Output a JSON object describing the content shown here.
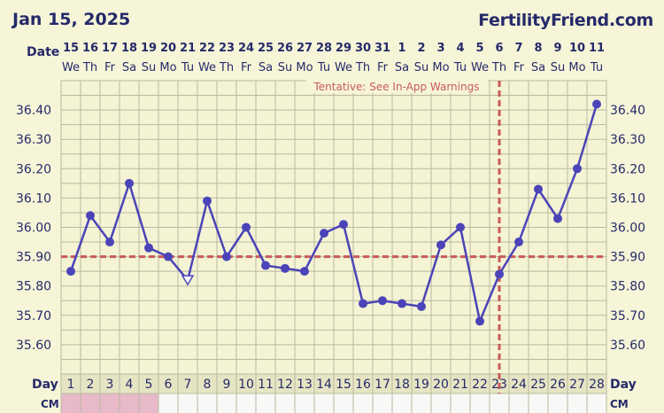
{
  "header": {
    "date": "Jan 15, 2025",
    "brand": "FertilityFriend.com"
  },
  "labels": {
    "date_row": "Date",
    "day_row": "Day",
    "cm_row": "CM",
    "warning": "Tentative: See In-App Warnings"
  },
  "colors": {
    "line": "#4b44b8",
    "coverline": "#c85a5a",
    "grid": "#b9b9a0",
    "cm_pink": "#e8b9c8"
  },
  "chart_data": {
    "type": "line",
    "x_day": [
      1,
      2,
      3,
      4,
      5,
      6,
      7,
      8,
      9,
      10,
      11,
      12,
      13,
      14,
      15,
      16,
      17,
      18,
      19,
      20,
      21,
      22,
      23,
      24,
      25,
      26,
      27,
      28
    ],
    "dates": [
      "15",
      "16",
      "17",
      "18",
      "19",
      "20",
      "21",
      "22",
      "23",
      "24",
      "25",
      "26",
      "27",
      "28",
      "29",
      "30",
      "31",
      "1",
      "2",
      "3",
      "4",
      "5",
      "6",
      "7",
      "8",
      "9",
      "10",
      "11"
    ],
    "weekdays": [
      "We",
      "Th",
      "Fr",
      "Sa",
      "Su",
      "Mo",
      "Tu",
      "We",
      "Th",
      "Fr",
      "Sa",
      "Su",
      "Mo",
      "Tu",
      "We",
      "Th",
      "Fr",
      "Sa",
      "Su",
      "Mo",
      "Tu",
      "We",
      "Th",
      "Fr",
      "Sa",
      "Su",
      "Mo",
      "Tu"
    ],
    "temperatures": [
      35.85,
      36.04,
      35.95,
      36.15,
      35.93,
      35.9,
      35.82,
      36.09,
      35.9,
      36.0,
      35.87,
      35.86,
      35.85,
      35.98,
      36.01,
      35.74,
      35.75,
      35.74,
      35.73,
      35.94,
      36.0,
      35.68,
      35.84,
      35.95,
      36.13,
      36.03,
      36.2,
      36.42
    ],
    "open_marker_days": [
      7
    ],
    "ylim": [
      35.5,
      36.5
    ],
    "y_ticks": [
      "35.60",
      "35.70",
      "35.80",
      "35.90",
      "36.00",
      "36.10",
      "36.20",
      "36.30",
      "36.40"
    ],
    "coverline": 35.9,
    "ovulation_day": 23,
    "cm_pink_days": [
      1,
      2,
      3,
      4,
      5
    ],
    "grid": true
  }
}
